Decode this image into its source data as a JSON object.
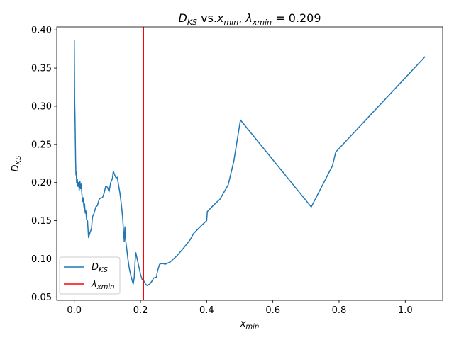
{
  "chart_data": {
    "type": "line",
    "title_parts": {
      "d": "D",
      "d_sub": "KS",
      "vs": " vs.",
      "x": "x",
      "x_sub": "min",
      "comma": ", ",
      "lambda": "λ",
      "lambda_sub": "xmin",
      "eq": " = 0.209"
    },
    "xlabel": {
      "main": "x",
      "sub": "min"
    },
    "ylabel": {
      "main": "D",
      "sub": "KS"
    },
    "xlim": [
      -0.053,
      1.113
    ],
    "ylim": [
      0.0457,
      0.4039
    ],
    "xticks": [
      0.0,
      0.2,
      0.4,
      0.6,
      0.8,
      1.0
    ],
    "xtick_labels": [
      "0.0",
      "0.2",
      "0.4",
      "0.6",
      "0.8",
      "1.0"
    ],
    "yticks": [
      0.05,
      0.1,
      0.15,
      0.2,
      0.25,
      0.3,
      0.35,
      0.4
    ],
    "ytick_labels": [
      "0.05",
      "0.10",
      "0.15",
      "0.20",
      "0.25",
      "0.30",
      "0.35",
      "0.40"
    ],
    "grid": false,
    "legend_position": "lower-left",
    "series": [
      {
        "name_main": "D",
        "name_sub": "KS",
        "color": "#1f77b4",
        "points": [
          [
            0.0,
            0.387
          ],
          [
            0.001,
            0.31
          ],
          [
            0.002,
            0.29
          ],
          [
            0.003,
            0.26
          ],
          [
            0.004,
            0.23
          ],
          [
            0.005,
            0.21
          ],
          [
            0.006,
            0.215
          ],
          [
            0.007,
            0.2
          ],
          [
            0.009,
            0.205
          ],
          [
            0.011,
            0.195
          ],
          [
            0.013,
            0.2
          ],
          [
            0.015,
            0.19
          ],
          [
            0.017,
            0.202
          ],
          [
            0.019,
            0.192
          ],
          [
            0.021,
            0.198
          ],
          [
            0.023,
            0.185
          ],
          [
            0.025,
            0.175
          ],
          [
            0.027,
            0.18
          ],
          [
            0.029,
            0.168
          ],
          [
            0.031,
            0.172
          ],
          [
            0.033,
            0.16
          ],
          [
            0.035,
            0.163
          ],
          [
            0.037,
            0.152
          ],
          [
            0.04,
            0.15
          ],
          [
            0.043,
            0.128
          ],
          [
            0.048,
            0.135
          ],
          [
            0.052,
            0.14
          ],
          [
            0.055,
            0.155
          ],
          [
            0.06,
            0.16
          ],
          [
            0.065,
            0.168
          ],
          [
            0.07,
            0.17
          ],
          [
            0.075,
            0.178
          ],
          [
            0.08,
            0.18
          ],
          [
            0.085,
            0.18
          ],
          [
            0.09,
            0.186
          ],
          [
            0.095,
            0.195
          ],
          [
            0.1,
            0.194
          ],
          [
            0.105,
            0.188
          ],
          [
            0.11,
            0.2
          ],
          [
            0.115,
            0.205
          ],
          [
            0.118,
            0.215
          ],
          [
            0.122,
            0.21
          ],
          [
            0.126,
            0.206
          ],
          [
            0.13,
            0.207
          ],
          [
            0.134,
            0.196
          ],
          [
            0.138,
            0.186
          ],
          [
            0.142,
            0.172
          ],
          [
            0.146,
            0.155
          ],
          [
            0.149,
            0.135
          ],
          [
            0.151,
            0.123
          ],
          [
            0.153,
            0.142
          ],
          [
            0.155,
            0.125
          ],
          [
            0.158,
            0.115
          ],
          [
            0.162,
            0.1
          ],
          [
            0.166,
            0.088
          ],
          [
            0.17,
            0.08
          ],
          [
            0.174,
            0.073
          ],
          [
            0.178,
            0.067
          ],
          [
            0.181,
            0.075
          ],
          [
            0.184,
            0.098
          ],
          [
            0.186,
            0.108
          ],
          [
            0.19,
            0.1
          ],
          [
            0.195,
            0.09
          ],
          [
            0.2,
            0.08
          ],
          [
            0.205,
            0.073
          ],
          [
            0.209,
            0.072
          ],
          [
            0.215,
            0.067
          ],
          [
            0.22,
            0.065
          ],
          [
            0.228,
            0.067
          ],
          [
            0.235,
            0.071
          ],
          [
            0.24,
            0.075
          ],
          [
            0.248,
            0.076
          ],
          [
            0.252,
            0.085
          ],
          [
            0.258,
            0.093
          ],
          [
            0.265,
            0.094
          ],
          [
            0.275,
            0.093
          ],
          [
            0.29,
            0.096
          ],
          [
            0.31,
            0.104
          ],
          [
            0.33,
            0.114
          ],
          [
            0.35,
            0.125
          ],
          [
            0.36,
            0.133
          ],
          [
            0.385,
            0.144
          ],
          [
            0.4,
            0.15
          ],
          [
            0.402,
            0.162
          ],
          [
            0.42,
            0.17
          ],
          [
            0.432,
            0.175
          ],
          [
            0.44,
            0.178
          ],
          [
            0.465,
            0.197
          ],
          [
            0.482,
            0.228
          ],
          [
            0.502,
            0.282
          ],
          [
            0.716,
            0.168
          ],
          [
            0.78,
            0.222
          ],
          [
            0.79,
            0.24
          ],
          [
            1.06,
            0.365
          ]
        ]
      }
    ],
    "vlines": [
      {
        "name_main": "λ",
        "name_sub": "xmin",
        "x": 0.209,
        "color": "#ff0000"
      }
    ]
  }
}
